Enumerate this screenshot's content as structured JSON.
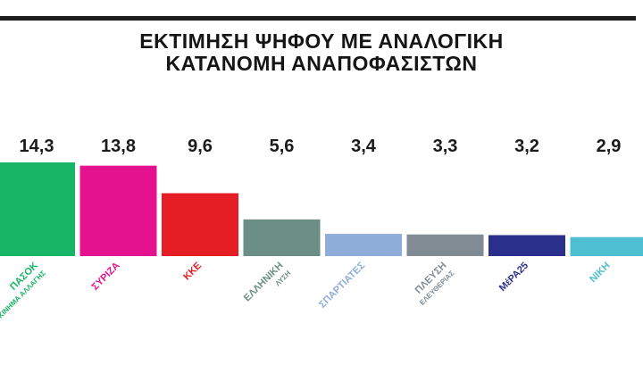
{
  "title_lines": [
    "ΕΚΤΙΜΗΣΗ ΨΗΦΟΥ ΜΕ ΑΝΑΛΟΓΙΚΗ",
    "ΚΑΤΑΝΟΜΗ ΑΝΑΠΟΦΑΣΙΣΤΩΝ"
  ],
  "chart_data": {
    "type": "bar",
    "categories": [
      [
        "ΠΑΣΟΚ",
        "ΚΙΝΗΜΑ ΑΛΛΑΓΗΣ"
      ],
      [
        "ΣΥΡΙΖΑ"
      ],
      [
        "ΚΚΕ"
      ],
      [
        "ΕΛΛΗΝΙΚΗ",
        "ΛΥΣΗ"
      ],
      [
        "ΣΠΑΡΤΙΑΤΕΣ"
      ],
      [
        "ΠΛΕΥΣΗ",
        "ΕΛΕΥΘΕΡΙΑΣ"
      ],
      [
        "ΜέΡΑ25"
      ],
      [
        "ΝΙΚΗ"
      ]
    ],
    "values": [
      14.3,
      13.8,
      9.6,
      5.6,
      3.4,
      3.3,
      3.2,
      2.9
    ],
    "value_labels": [
      "14,3",
      "13,8",
      "9,6",
      "5,6",
      "3,4",
      "3,3",
      "3,2",
      "2,9"
    ],
    "colors": [
      "#19b566",
      "#e4128f",
      "#e51e26",
      "#6b8e85",
      "#8fadd9",
      "#808b94",
      "#2a2f8c",
      "#4ebfd0"
    ],
    "label_colors": [
      "#19b566",
      "#e4128f",
      "#e51e26",
      "#6b8e85",
      "#8fadd9",
      "#808b94",
      "#2a2f8c",
      "#4ebfd0"
    ],
    "xlabel": "",
    "ylabel": "",
    "ylim": [
      0,
      14.3
    ],
    "grid": false,
    "legend": "none"
  }
}
